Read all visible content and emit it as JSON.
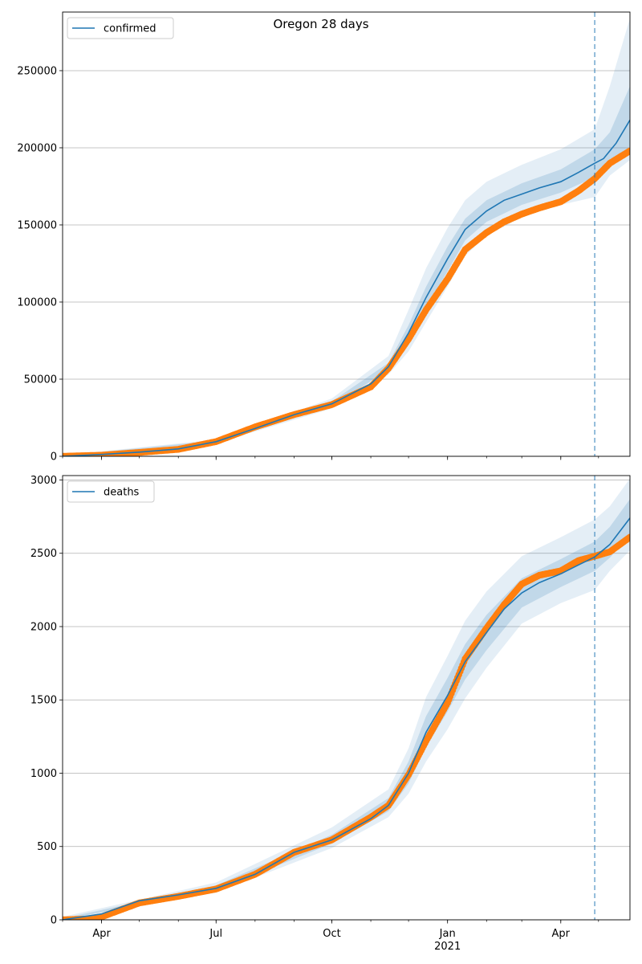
{
  "chart_data": {
    "title": "Oregon 28 days",
    "x_axis": {
      "start": "2020-03-01",
      "end": "2021-05-26",
      "major_ticks": [
        {
          "date": "2020-04-01",
          "label": "Apr",
          "sublabel": ""
        },
        {
          "date": "2020-07-01",
          "label": "Jul",
          "sublabel": ""
        },
        {
          "date": "2020-10-01",
          "label": "Oct",
          "sublabel": ""
        },
        {
          "date": "2021-01-01",
          "label": "Jan",
          "sublabel": "2021"
        },
        {
          "date": "2021-04-01",
          "label": "Apr",
          "sublabel": ""
        }
      ],
      "forecast_start": "2021-04-28"
    },
    "panels": [
      {
        "name": "confirmed",
        "type": "line",
        "legend": "confirmed",
        "legend_position": "upper-left",
        "ylim": [
          0,
          288000
        ],
        "yticks": [
          0,
          50000,
          100000,
          150000,
          200000,
          250000
        ],
        "grid": "horizontal",
        "colors": {
          "model": "#1f77b4",
          "observed": "#ff7f0e",
          "band": "#1f77b4"
        },
        "model": [
          [
            "2020-03-01",
            0
          ],
          [
            "2020-04-01",
            1200
          ],
          [
            "2020-05-01",
            2700
          ],
          [
            "2020-06-01",
            4800
          ],
          [
            "2020-07-01",
            9500
          ],
          [
            "2020-08-01",
            18000
          ],
          [
            "2020-09-01",
            27000
          ],
          [
            "2020-10-01",
            34000
          ],
          [
            "2020-11-01",
            47000
          ],
          [
            "2020-11-15",
            58000
          ],
          [
            "2020-12-01",
            80000
          ],
          [
            "2020-12-15",
            103000
          ],
          [
            "2021-01-01",
            128000
          ],
          [
            "2021-01-15",
            147000
          ],
          [
            "2021-02-01",
            159000
          ],
          [
            "2021-02-15",
            166000
          ],
          [
            "2021-03-01",
            170000
          ],
          [
            "2021-03-15",
            174000
          ],
          [
            "2021-04-01",
            178000
          ],
          [
            "2021-04-15",
            184000
          ],
          [
            "2021-04-28",
            190000
          ],
          [
            "2021-05-05",
            193000
          ],
          [
            "2021-05-15",
            203000
          ],
          [
            "2021-05-26",
            218000
          ]
        ],
        "band_inner": [
          [
            "2020-03-01",
            0,
            300
          ],
          [
            "2020-07-01",
            9000,
            10200
          ],
          [
            "2020-10-01",
            32500,
            35500
          ],
          [
            "2020-11-15",
            56000,
            60500
          ],
          [
            "2020-12-01",
            75000,
            85000
          ],
          [
            "2020-12-15",
            96000,
            110000
          ],
          [
            "2021-01-01",
            120000,
            136000
          ],
          [
            "2021-01-15",
            140000,
            154000
          ],
          [
            "2021-02-01",
            152000,
            166000
          ],
          [
            "2021-03-01",
            163000,
            177000
          ],
          [
            "2021-04-01",
            171000,
            186000
          ],
          [
            "2021-04-28",
            181000,
            199000
          ],
          [
            "2021-05-10",
            188000,
            210000
          ],
          [
            "2021-05-26",
            198000,
            240000
          ]
        ],
        "band_outer": [
          [
            "2020-03-01",
            0,
            600
          ],
          [
            "2020-07-01",
            8500,
            10800
          ],
          [
            "2020-10-01",
            31000,
            37500
          ],
          [
            "2020-11-15",
            53000,
            65000
          ],
          [
            "2020-12-01",
            68000,
            95000
          ],
          [
            "2020-12-15",
            87000,
            122000
          ],
          [
            "2021-01-01",
            110000,
            148000
          ],
          [
            "2021-01-15",
            130000,
            166000
          ],
          [
            "2021-02-01",
            143000,
            178000
          ],
          [
            "2021-03-01",
            155000,
            189000
          ],
          [
            "2021-04-01",
            163000,
            199000
          ],
          [
            "2021-04-28",
            168000,
            212000
          ],
          [
            "2021-05-10",
            182000,
            240000
          ],
          [
            "2021-05-26",
            192000,
            284000
          ]
        ],
        "observed": [
          [
            "2020-03-01",
            0
          ],
          [
            "2020-04-01",
            700
          ],
          [
            "2020-05-01",
            2500
          ],
          [
            "2020-06-01",
            4500
          ],
          [
            "2020-07-01",
            9500
          ],
          [
            "2020-08-01",
            19000
          ],
          [
            "2020-09-01",
            27000
          ],
          [
            "2020-10-01",
            33500
          ],
          [
            "2020-11-01",
            45000
          ],
          [
            "2020-11-15",
            57000
          ],
          [
            "2020-12-01",
            76000
          ],
          [
            "2020-12-15",
            95000
          ],
          [
            "2021-01-01",
            115000
          ],
          [
            "2021-01-15",
            134000
          ],
          [
            "2021-02-01",
            145000
          ],
          [
            "2021-02-15",
            152000
          ],
          [
            "2021-03-01",
            157000
          ],
          [
            "2021-03-15",
            161000
          ],
          [
            "2021-04-01",
            165000
          ],
          [
            "2021-04-15",
            172000
          ],
          [
            "2021-04-28",
            180000
          ],
          [
            "2021-05-10",
            190000
          ],
          [
            "2021-05-26",
            198000
          ]
        ]
      },
      {
        "name": "deaths",
        "type": "line",
        "legend": "deaths",
        "legend_position": "upper-left",
        "ylim": [
          0,
          3030
        ],
        "yticks": [
          0,
          500,
          1000,
          1500,
          2000,
          2500,
          3000
        ],
        "grid": "horizontal",
        "colors": {
          "model": "#1f77b4",
          "observed": "#ff7f0e",
          "band": "#1f77b4"
        },
        "model": [
          [
            "2020-03-01",
            0
          ],
          [
            "2020-04-01",
            40
          ],
          [
            "2020-05-01",
            130
          ],
          [
            "2020-06-01",
            170
          ],
          [
            "2020-07-01",
            215
          ],
          [
            "2020-08-01",
            310
          ],
          [
            "2020-09-01",
            460
          ],
          [
            "2020-10-01",
            545
          ],
          [
            "2020-11-01",
            690
          ],
          [
            "2020-11-15",
            780
          ],
          [
            "2020-12-01",
            1000
          ],
          [
            "2020-12-15",
            1280
          ],
          [
            "2021-01-01",
            1530
          ],
          [
            "2021-01-15",
            1760
          ],
          [
            "2021-02-01",
            1960
          ],
          [
            "2021-02-15",
            2120
          ],
          [
            "2021-03-01",
            2230
          ],
          [
            "2021-03-15",
            2300
          ],
          [
            "2021-04-01",
            2360
          ],
          [
            "2021-04-15",
            2420
          ],
          [
            "2021-04-28",
            2475
          ],
          [
            "2021-05-10",
            2560
          ],
          [
            "2021-05-26",
            2740
          ]
        ],
        "band_inner": [
          [
            "2020-03-01",
            0,
            10
          ],
          [
            "2020-07-01",
            200,
            235
          ],
          [
            "2020-10-01",
            520,
            580
          ],
          [
            "2020-11-15",
            740,
            830
          ],
          [
            "2020-12-01",
            930,
            1080
          ],
          [
            "2020-12-15",
            1180,
            1390
          ],
          [
            "2021-01-01",
            1420,
            1650
          ],
          [
            "2021-01-15",
            1640,
            1880
          ],
          [
            "2021-02-01",
            1840,
            2080
          ],
          [
            "2021-03-01",
            2130,
            2330
          ],
          [
            "2021-04-01",
            2270,
            2460
          ],
          [
            "2021-04-28",
            2380,
            2580
          ],
          [
            "2021-05-10",
            2470,
            2680
          ],
          [
            "2021-05-26",
            2620,
            2870
          ]
        ],
        "band_outer": [
          [
            "2020-03-01",
            0,
            20
          ],
          [
            "2020-07-01",
            185,
            255
          ],
          [
            "2020-10-01",
            490,
            630
          ],
          [
            "2020-11-15",
            700,
            890
          ],
          [
            "2020-12-01",
            860,
            1170
          ],
          [
            "2020-12-15",
            1080,
            1520
          ],
          [
            "2021-01-01",
            1300,
            1800
          ],
          [
            "2021-01-15",
            1510,
            2040
          ],
          [
            "2021-02-01",
            1720,
            2240
          ],
          [
            "2021-03-01",
            2020,
            2480
          ],
          [
            "2021-04-01",
            2160,
            2610
          ],
          [
            "2021-04-28",
            2250,
            2730
          ],
          [
            "2021-05-10",
            2380,
            2820
          ],
          [
            "2021-05-26",
            2520,
            3010
          ]
        ],
        "observed": [
          [
            "2020-03-01",
            0
          ],
          [
            "2020-03-20",
            5
          ],
          [
            "2020-04-01",
            20
          ],
          [
            "2020-05-01",
            115
          ],
          [
            "2020-06-01",
            160
          ],
          [
            "2020-07-01",
            210
          ],
          [
            "2020-08-01",
            310
          ],
          [
            "2020-09-01",
            460
          ],
          [
            "2020-10-01",
            545
          ],
          [
            "2020-11-01",
            700
          ],
          [
            "2020-11-15",
            780
          ],
          [
            "2020-12-01",
            990
          ],
          [
            "2020-12-15",
            1220
          ],
          [
            "2021-01-01",
            1480
          ],
          [
            "2021-01-15",
            1780
          ],
          [
            "2021-02-01",
            1990
          ],
          [
            "2021-02-15",
            2150
          ],
          [
            "2021-03-01",
            2290
          ],
          [
            "2021-03-15",
            2350
          ],
          [
            "2021-04-01",
            2380
          ],
          [
            "2021-04-15",
            2450
          ],
          [
            "2021-04-28",
            2480
          ],
          [
            "2021-05-10",
            2510
          ],
          [
            "2021-05-26",
            2610
          ]
        ]
      }
    ]
  }
}
